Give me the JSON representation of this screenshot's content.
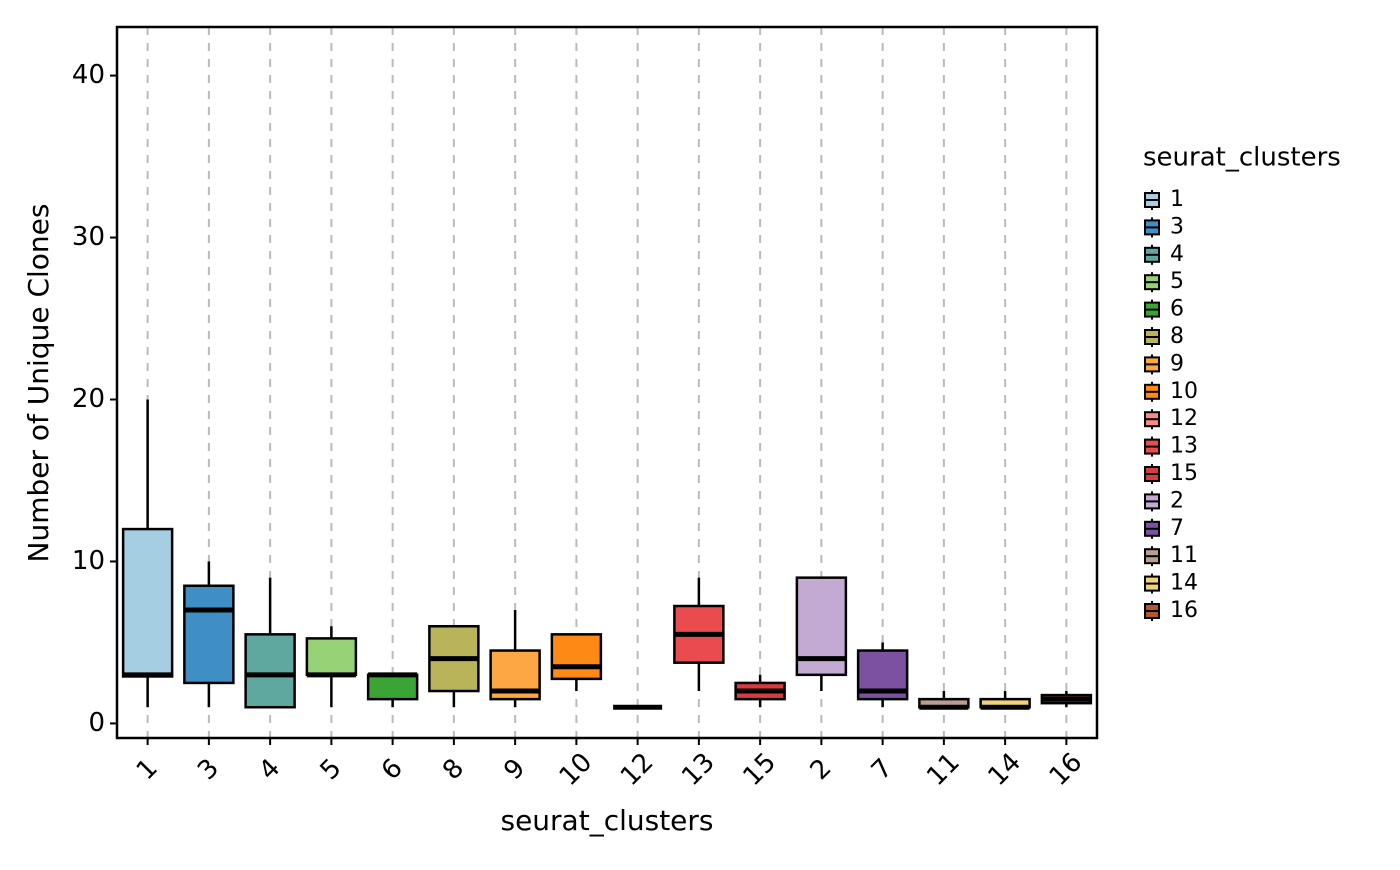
{
  "chart_data": {
    "type": "box",
    "x_label": "seurat_clusters",
    "y_label": "Number of Unique Clones",
    "legend_title": "seurat_clusters",
    "categories": [
      "1",
      "3",
      "4",
      "5",
      "6",
      "8",
      "9",
      "10",
      "12",
      "13",
      "15",
      "2",
      "7",
      "11",
      "14",
      "16"
    ],
    "colors": [
      "#a6cee3",
      "#3f8fc4",
      "#5fa8a0",
      "#98d277",
      "#3aa534",
      "#b9b45a",
      "#fda744",
      "#fe8a15",
      "#f78b83",
      "#e94b4f",
      "#d93b44",
      "#c3aad2",
      "#7c51a1",
      "#b89f92",
      "#f0d27d",
      "#b15928"
    ],
    "whisker_low": [
      1,
      1,
      1,
      1,
      1,
      1,
      1,
      2,
      1,
      2,
      1,
      2,
      1,
      1,
      1,
      1
    ],
    "q1": [
      2.9,
      2.5,
      1,
      3,
      1.5,
      2,
      1.5,
      2.75,
      1,
      3.75,
      1.5,
      3,
      1.5,
      1,
      1,
      1.25
    ],
    "median": [
      3,
      7,
      3,
      3,
      3,
      4,
      2,
      3.5,
      1,
      5.5,
      2,
      4,
      2,
      1,
      1,
      1.5
    ],
    "q3": [
      12,
      8.5,
      5.5,
      5.25,
      3,
      6,
      4.5,
      5.5,
      1,
      7.25,
      2.5,
      9,
      4.5,
      1.5,
      1.5,
      1.75
    ],
    "whisker_high": [
      20,
      10,
      9,
      6,
      3,
      6,
      7,
      5.5,
      1,
      9,
      3,
      9,
      5,
      2,
      2,
      2
    ],
    "ylim": [
      -0.9,
      43
    ],
    "yticks": [
      0,
      10,
      20,
      30,
      40
    ],
    "grid": "x-dashed"
  }
}
